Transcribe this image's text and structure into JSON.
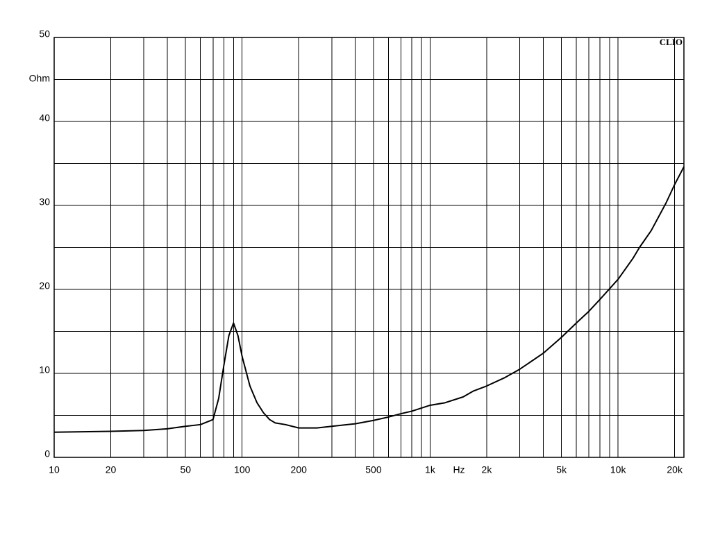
{
  "chart_data": {
    "type": "line",
    "brand": "CLIO",
    "y_label": "Ohm",
    "x_label": "Hz",
    "log_x": true,
    "grid": true,
    "color": "#000000",
    "xlim": [
      10,
      22400
    ],
    "ylim": [
      0,
      50
    ],
    "xticks": [
      10,
      20,
      50,
      100,
      200,
      500,
      {
        "value": 1000,
        "label": "1k"
      },
      {
        "value": 2000,
        "label": "2k"
      },
      {
        "value": 5000,
        "label": "5k"
      },
      {
        "value": 10000,
        "label": "10k"
      },
      {
        "value": 20000,
        "label": "20k"
      }
    ],
    "xgrid_minor": [
      30,
      40,
      60,
      70,
      80,
      90,
      300,
      400,
      600,
      700,
      800,
      900,
      3000,
      4000,
      6000,
      7000,
      8000,
      9000
    ],
    "yticks": [
      0,
      10,
      20,
      30,
      40,
      50
    ],
    "ygrid_minor": [
      5,
      15,
      25,
      35,
      45
    ],
    "x": [
      10,
      20,
      30,
      40,
      50,
      60,
      70,
      75,
      80,
      85,
      90,
      95,
      100,
      110,
      120,
      130,
      140,
      150,
      170,
      200,
      250,
      300,
      400,
      500,
      600,
      700,
      800,
      1000,
      1200,
      1500,
      1700,
      2000,
      2500,
      3000,
      4000,
      5000,
      6000,
      7000,
      8000,
      10000,
      12000,
      13000,
      15000,
      18000,
      20000,
      22400
    ],
    "values": [
      3.0,
      3.1,
      3.2,
      3.4,
      3.7,
      3.9,
      4.5,
      7,
      11,
      14.5,
      16.0,
      14.5,
      12,
      8.5,
      6.5,
      5.3,
      4.5,
      4.1,
      3.9,
      3.5,
      3.5,
      3.7,
      4.0,
      4.4,
      4.8,
      5.2,
      5.5,
      6.2,
      6.5,
      7.2,
      7.9,
      8.5,
      9.5,
      10.5,
      12.4,
      14.3,
      16.0,
      17.4,
      18.8,
      21.2,
      23.7,
      25.0,
      27.0,
      30.3,
      32.5,
      34.6
    ]
  }
}
